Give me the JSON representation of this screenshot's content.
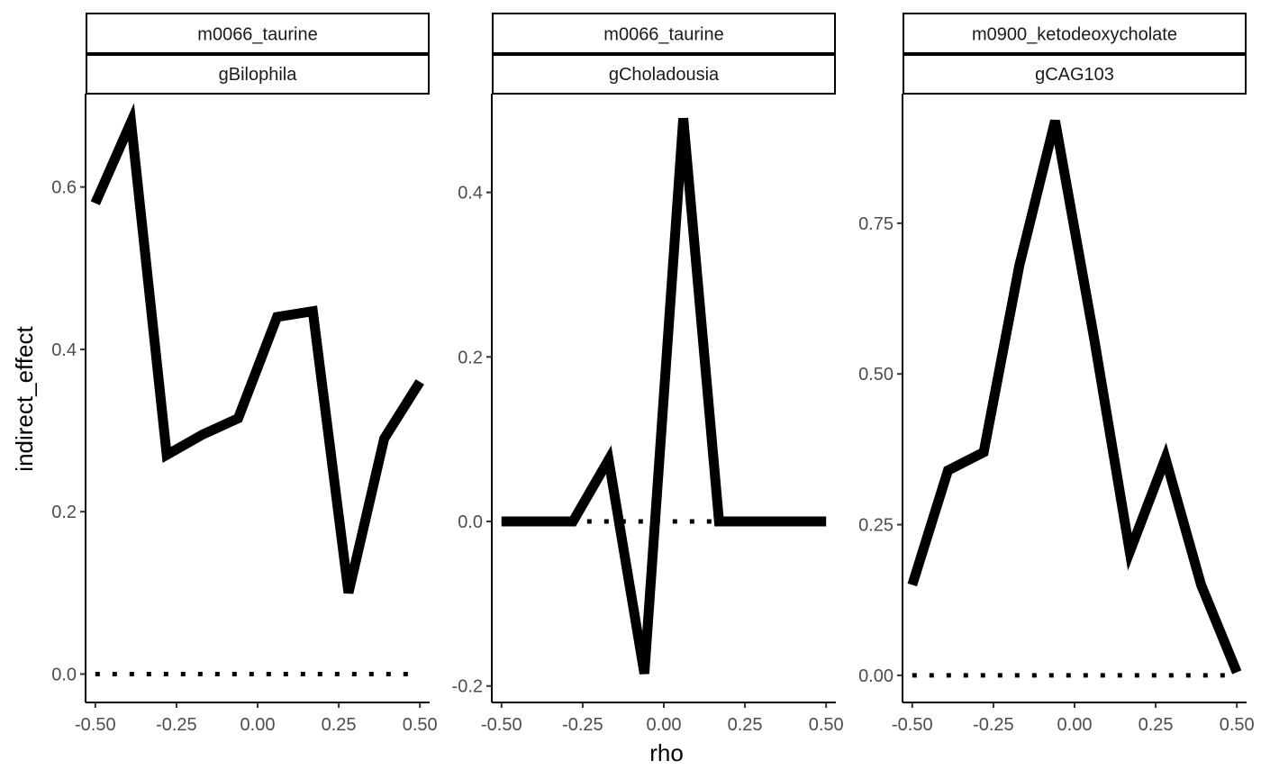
{
  "figure": {
    "xlabel": "rho",
    "ylabel": "indirect_effect"
  },
  "chart_data": [
    {
      "type": "line",
      "strip_top": "m0066_taurine",
      "strip_bottom": "gBilophila",
      "x": [
        -0.5,
        -0.39,
        -0.28,
        -0.17,
        -0.06,
        0.06,
        0.17,
        0.28,
        0.39,
        0.5
      ],
      "values": [
        0.58,
        0.68,
        0.27,
        0.295,
        0.315,
        0.44,
        0.447,
        0.1,
        0.29,
        0.36
      ],
      "reference_line": 0,
      "xlim": [
        -0.53,
        0.53
      ],
      "ylim": [
        -0.035,
        0.715
      ],
      "x_ticks": [
        -0.5,
        -0.25,
        0.0,
        0.25,
        0.5
      ],
      "x_tick_labels": [
        "-0.50",
        "-0.25",
        "0.00",
        "0.25",
        "0.50"
      ],
      "y_ticks": [
        0.0,
        0.2,
        0.4,
        0.6
      ],
      "y_tick_labels": [
        "0.0",
        "0.2",
        "0.4",
        "0.6"
      ]
    },
    {
      "type": "line",
      "strip_top": "m0066_taurine",
      "strip_bottom": "gCholadousia",
      "x": [
        -0.5,
        -0.39,
        -0.28,
        -0.17,
        -0.06,
        0.06,
        0.17,
        0.28,
        0.39,
        0.5
      ],
      "values": [
        0.0,
        0.0,
        0.0,
        0.075,
        -0.185,
        0.49,
        0.0,
        0.0,
        0.0,
        0.0
      ],
      "reference_line": 0,
      "xlim": [
        -0.53,
        0.53
      ],
      "ylim": [
        -0.22,
        0.52
      ],
      "x_ticks": [
        -0.5,
        -0.25,
        0.0,
        0.25,
        0.5
      ],
      "x_tick_labels": [
        "-0.50",
        "-0.25",
        "0.00",
        "0.25",
        "0.50"
      ],
      "y_ticks": [
        -0.2,
        0.0,
        0.2,
        0.4
      ],
      "y_tick_labels": [
        "-0.2",
        "0.0",
        "0.2",
        "0.4"
      ]
    },
    {
      "type": "line",
      "strip_top": "m0900_ketodeoxycholate",
      "strip_bottom": "gCAG103",
      "x": [
        -0.5,
        -0.39,
        -0.28,
        -0.17,
        -0.06,
        0.06,
        0.17,
        0.28,
        0.39,
        0.5
      ],
      "values": [
        0.15,
        0.34,
        0.37,
        0.68,
        0.92,
        0.56,
        0.205,
        0.36,
        0.15,
        0.005
      ],
      "reference_line": 0,
      "xlim": [
        -0.53,
        0.53
      ],
      "ylim": [
        -0.045,
        0.965
      ],
      "x_ticks": [
        -0.5,
        -0.25,
        0.0,
        0.25,
        0.5
      ],
      "x_tick_labels": [
        "-0.50",
        "-0.25",
        "0.00",
        "0.25",
        "0.50"
      ],
      "y_ticks": [
        0.0,
        0.25,
        0.5,
        0.75
      ],
      "y_tick_labels": [
        "0.00",
        "0.25",
        "0.50",
        "0.75"
      ]
    }
  ]
}
